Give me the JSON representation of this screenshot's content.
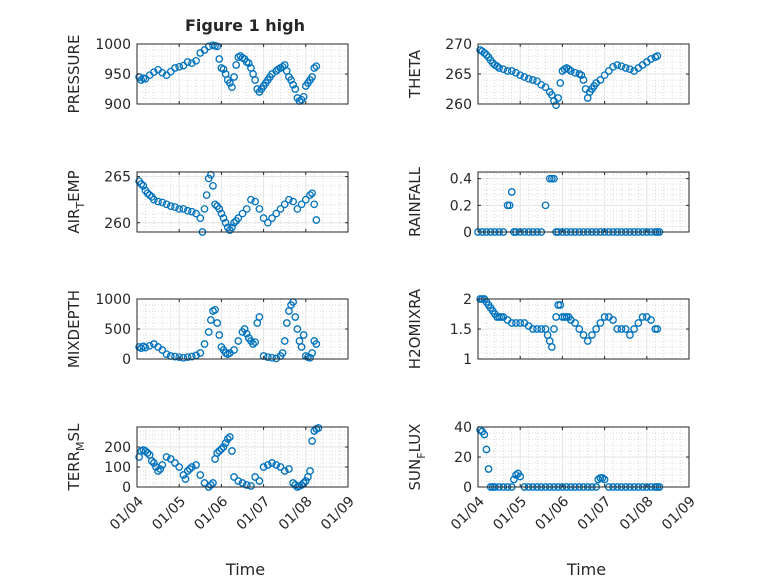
{
  "title": "Figure 1 high",
  "chart_data": [
    {
      "type": "scatter",
      "ylabel": "PRESSURE",
      "xlim": [
        "2023-01-04",
        "2023-01-09"
      ],
      "ylim": [
        900,
        1000
      ],
      "yticks": [
        900,
        950,
        1000
      ],
      "xticklabels": [],
      "series": [
        {
          "x": [
            4.05,
            4.1,
            4.15,
            4.2,
            4.3,
            4.4,
            4.5,
            4.6,
            4.7,
            4.8,
            4.9,
            5.0,
            5.1,
            5.2,
            5.3,
            5.4,
            5.5,
            5.6,
            5.7,
            5.8,
            5.85,
            5.9,
            5.95,
            6.0,
            6.05,
            6.1,
            6.15,
            6.2,
            6.25,
            6.3,
            6.35,
            6.4,
            6.45,
            6.5,
            6.55,
            6.6,
            6.65,
            6.7,
            6.75,
            6.8,
            6.85,
            6.9,
            6.95,
            7.0,
            7.05,
            7.1,
            7.15,
            7.2,
            7.3,
            7.35,
            7.4,
            7.45,
            7.5,
            7.55,
            7.6,
            7.65,
            7.7,
            7.75,
            7.8,
            7.85,
            7.9,
            7.95,
            8.0,
            8.05,
            8.1,
            8.15,
            8.2,
            8.25
          ],
          "y": [
            945,
            940,
            943,
            942,
            948,
            953,
            957,
            952,
            948,
            954,
            960,
            962,
            964,
            970,
            968,
            972,
            985,
            990,
            996,
            998,
            997,
            996,
            975,
            960,
            958,
            950,
            940,
            935,
            928,
            945,
            965,
            978,
            980,
            977,
            975,
            970,
            968,
            960,
            950,
            940,
            925,
            920,
            925,
            930,
            935,
            940,
            945,
            950,
            955,
            958,
            960,
            962,
            965,
            955,
            945,
            940,
            932,
            925,
            910,
            905,
            907,
            912,
            930,
            935,
            940,
            945,
            960,
            963
          ]
        }
      ]
    },
    {
      "type": "scatter",
      "ylabel": "THETA",
      "xlim": [
        "2023-01-04",
        "2023-01-09"
      ],
      "ylim": [
        260,
        270
      ],
      "yticks": [
        260,
        265,
        270
      ],
      "xticklabels": [],
      "series": [
        {
          "x": [
            4.05,
            4.1,
            4.15,
            4.2,
            4.25,
            4.3,
            4.35,
            4.4,
            4.45,
            4.5,
            4.6,
            4.7,
            4.8,
            4.9,
            5.0,
            5.1,
            5.2,
            5.3,
            5.4,
            5.5,
            5.6,
            5.7,
            5.75,
            5.8,
            5.85,
            5.9,
            5.95,
            6.0,
            6.05,
            6.1,
            6.15,
            6.2,
            6.3,
            6.4,
            6.45,
            6.5,
            6.55,
            6.6,
            6.65,
            6.7,
            6.75,
            6.8,
            6.9,
            7.0,
            7.1,
            7.2,
            7.3,
            7.4,
            7.5,
            7.6,
            7.7,
            7.8,
            7.9,
            8.0,
            8.1,
            8.2,
            8.25
          ],
          "y": [
            269,
            268.8,
            268.5,
            268.2,
            267.8,
            267.3,
            266.8,
            266.5,
            266.3,
            266,
            265.8,
            265.5,
            265.5,
            265.2,
            264.8,
            264.5,
            264.2,
            264.0,
            263.8,
            263.2,
            262.8,
            262,
            261.5,
            260.5,
            259.8,
            261,
            263.5,
            265.5,
            265.8,
            266,
            265.8,
            265.5,
            265.2,
            265.0,
            264.8,
            264,
            262.5,
            261,
            262,
            262.5,
            263,
            263.5,
            264,
            264.8,
            265.5,
            266.2,
            266.5,
            266.3,
            266,
            265.8,
            265.5,
            266,
            266.5,
            267,
            267.5,
            267.8,
            268
          ]
        }
      ]
    },
    {
      "type": "scatter",
      "ylabel": "AIR_TEMP",
      "xlim": [
        "2023-01-04",
        "2023-01-09"
      ],
      "ylim": [
        259,
        265.5
      ],
      "yticks": [
        260,
        265
      ],
      "xticklabels": [],
      "series": [
        {
          "x": [
            4.05,
            4.1,
            4.15,
            4.2,
            4.25,
            4.3,
            4.35,
            4.4,
            4.5,
            4.6,
            4.7,
            4.8,
            4.9,
            5.0,
            5.1,
            5.2,
            5.3,
            5.4,
            5.5,
            5.55,
            5.6,
            5.65,
            5.7,
            5.75,
            5.8,
            5.85,
            5.9,
            5.95,
            6.0,
            6.05,
            6.1,
            6.15,
            6.2,
            6.25,
            6.3,
            6.35,
            6.4,
            6.5,
            6.6,
            6.7,
            6.8,
            6.9,
            7.0,
            7.1,
            7.2,
            7.3,
            7.4,
            7.5,
            7.6,
            7.7,
            7.8,
            7.9,
            8.0,
            8.1,
            8.15,
            8.2,
            8.25
          ],
          "y": [
            264.5,
            264.2,
            264,
            263.5,
            263.2,
            263,
            262.8,
            262.5,
            262.3,
            262.2,
            262,
            261.8,
            261.7,
            261.5,
            261.5,
            261.3,
            261.2,
            261.0,
            260.5,
            259,
            261.5,
            263,
            264.8,
            265.2,
            264,
            262,
            261.8,
            261.5,
            261,
            260.5,
            260,
            259.5,
            259.2,
            259.5,
            260,
            260.2,
            260.5,
            261,
            261.5,
            262.5,
            262.3,
            261.5,
            260.5,
            260,
            260.5,
            261,
            261.5,
            262,
            262.5,
            262.3,
            261.5,
            262,
            262.5,
            263,
            263.2,
            262,
            260.3
          ]
        }
      ]
    },
    {
      "type": "scatter",
      "ylabel": "RAINFALL",
      "xlim": [
        "2023-01-04",
        "2023-01-09"
      ],
      "ylim": [
        0,
        0.45
      ],
      "yticks": [
        0,
        0.2,
        0.4
      ],
      "xticklabels": [],
      "series": [
        {
          "x": [
            4.0,
            4.1,
            4.2,
            4.3,
            4.4,
            4.5,
            4.6,
            4.7,
            4.75,
            4.8,
            4.85,
            4.9,
            5.0,
            5.1,
            5.2,
            5.3,
            5.4,
            5.5,
            5.6,
            5.7,
            5.75,
            5.8,
            5.85,
            5.9,
            6.0,
            6.1,
            6.2,
            6.3,
            6.4,
            6.5,
            6.6,
            6.7,
            6.8,
            6.9,
            7.0,
            7.1,
            7.2,
            7.3,
            7.4,
            7.5,
            7.6,
            7.7,
            7.8,
            7.9,
            8.0,
            8.1,
            8.2,
            8.25,
            8.3
          ],
          "y": [
            0,
            0,
            0,
            0,
            0,
            0,
            0,
            0.2,
            0.2,
            0.3,
            0,
            0,
            0,
            0,
            0,
            0,
            0,
            0,
            0.2,
            0.4,
            0.4,
            0.4,
            0,
            0,
            0,
            0,
            0,
            0,
            0,
            0,
            0,
            0,
            0,
            0,
            0,
            0,
            0,
            0,
            0,
            0,
            0,
            0,
            0,
            0,
            0,
            0,
            0,
            0,
            0
          ]
        }
      ]
    },
    {
      "type": "scatter",
      "ylabel": "MIXDEPTH",
      "xlim": [
        "2023-01-04",
        "2023-01-09"
      ],
      "ylim": [
        0,
        1000
      ],
      "yticks": [
        0,
        500,
        1000
      ],
      "xticklabels": [],
      "series": [
        {
          "x": [
            4.05,
            4.1,
            4.15,
            4.2,
            4.3,
            4.4,
            4.5,
            4.6,
            4.7,
            4.8,
            4.9,
            5.0,
            5.1,
            5.2,
            5.3,
            5.4,
            5.5,
            5.6,
            5.7,
            5.75,
            5.8,
            5.85,
            5.9,
            5.95,
            6.0,
            6.05,
            6.1,
            6.15,
            6.2,
            6.3,
            6.4,
            6.5,
            6.55,
            6.6,
            6.65,
            6.7,
            6.75,
            6.8,
            6.85,
            6.9,
            7.0,
            7.1,
            7.2,
            7.3,
            7.4,
            7.45,
            7.5,
            7.55,
            7.6,
            7.65,
            7.7,
            7.75,
            7.8,
            7.85,
            7.9,
            7.95,
            8.0,
            8.05,
            8.1,
            8.15,
            8.2,
            8.25
          ],
          "y": [
            200,
            180,
            210,
            190,
            220,
            250,
            200,
            150,
            80,
            50,
            40,
            30,
            20,
            30,
            40,
            60,
            100,
            250,
            450,
            650,
            800,
            820,
            600,
            400,
            200,
            150,
            100,
            80,
            100,
            150,
            300,
            450,
            500,
            420,
            350,
            300,
            250,
            280,
            600,
            700,
            50,
            30,
            20,
            10,
            50,
            100,
            300,
            600,
            800,
            900,
            950,
            700,
            500,
            300,
            200,
            400,
            50,
            30,
            20,
            100,
            300,
            250
          ]
        }
      ]
    },
    {
      "type": "scatter",
      "ylabel": "H2OMIXRA",
      "xlim": [
        "2023-01-04",
        "2023-01-09"
      ],
      "ylim": [
        1,
        2
      ],
      "yticks": [
        1,
        1.5,
        2
      ],
      "xticklabels": [],
      "series": [
        {
          "x": [
            4.05,
            4.1,
            4.15,
            4.2,
            4.25,
            4.3,
            4.35,
            4.4,
            4.45,
            4.5,
            4.55,
            4.6,
            4.7,
            4.8,
            4.9,
            5.0,
            5.1,
            5.2,
            5.3,
            5.4,
            5.5,
            5.6,
            5.65,
            5.7,
            5.75,
            5.8,
            5.85,
            5.9,
            5.95,
            6.0,
            6.05,
            6.1,
            6.15,
            6.2,
            6.3,
            6.4,
            6.5,
            6.6,
            6.7,
            6.8,
            6.9,
            7.0,
            7.1,
            7.2,
            7.3,
            7.4,
            7.5,
            7.6,
            7.7,
            7.8,
            7.9,
            8.0,
            8.1,
            8.2,
            8.25
          ],
          "y": [
            2,
            2,
            2,
            1.95,
            1.9,
            1.85,
            1.8,
            1.75,
            1.7,
            1.7,
            1.7,
            1.7,
            1.65,
            1.6,
            1.6,
            1.6,
            1.6,
            1.55,
            1.5,
            1.5,
            1.5,
            1.5,
            1.4,
            1.3,
            1.2,
            1.5,
            1.7,
            1.9,
            1.9,
            1.7,
            1.7,
            1.7,
            1.7,
            1.65,
            1.6,
            1.5,
            1.4,
            1.3,
            1.4,
            1.5,
            1.6,
            1.7,
            1.7,
            1.65,
            1.5,
            1.5,
            1.5,
            1.4,
            1.5,
            1.6,
            1.7,
            1.7,
            1.65,
            1.5,
            1.5
          ]
        }
      ]
    },
    {
      "type": "scatter",
      "ylabel": "TERR_MSL",
      "xlabel": "Time",
      "xlim": [
        "2023-01-04",
        "2023-01-09"
      ],
      "ylim": [
        0,
        300
      ],
      "yticks": [
        0,
        100,
        200
      ],
      "xticklabels": [
        "01/04",
        "01/05",
        "01/06",
        "01/07",
        "01/08",
        "01/09"
      ],
      "series": [
        {
          "x": [
            4.05,
            4.1,
            4.15,
            4.2,
            4.25,
            4.3,
            4.35,
            4.4,
            4.45,
            4.5,
            4.55,
            4.6,
            4.7,
            4.8,
            4.9,
            5.0,
            5.1,
            5.15,
            5.2,
            5.25,
            5.3,
            5.4,
            5.5,
            5.6,
            5.7,
            5.75,
            5.8,
            5.85,
            5.9,
            5.95,
            6.0,
            6.05,
            6.1,
            6.15,
            6.2,
            6.25,
            6.3,
            6.4,
            6.5,
            6.6,
            6.7,
            6.8,
            6.9,
            7.0,
            7.1,
            7.2,
            7.3,
            7.4,
            7.5,
            7.6,
            7.7,
            7.75,
            7.8,
            7.85,
            7.9,
            7.95,
            8.0,
            8.05,
            8.1,
            8.15,
            8.2,
            8.25,
            8.3
          ],
          "y": [
            150,
            180,
            185,
            180,
            170,
            160,
            130,
            120,
            100,
            80,
            90,
            110,
            150,
            140,
            120,
            100,
            60,
            40,
            80,
            90,
            100,
            110,
            60,
            20,
            0,
            10,
            20,
            140,
            170,
            180,
            190,
            200,
            220,
            240,
            250,
            180,
            50,
            30,
            20,
            10,
            5,
            50,
            30,
            100,
            110,
            120,
            110,
            100,
            80,
            90,
            20,
            10,
            0,
            5,
            10,
            20,
            30,
            50,
            80,
            230,
            280,
            290,
            295
          ]
        }
      ]
    },
    {
      "type": "scatter",
      "ylabel": "SUN_FLUX",
      "xlabel": "Time",
      "xlim": [
        "2023-01-04",
        "2023-01-09"
      ],
      "ylim": [
        0,
        40
      ],
      "yticks": [
        0,
        20,
        40
      ],
      "xticklabels": [
        "01/04",
        "01/05",
        "01/06",
        "01/07",
        "01/08",
        "01/09"
      ],
      "series": [
        {
          "x": [
            4.05,
            4.1,
            4.15,
            4.2,
            4.25,
            4.3,
            4.35,
            4.4,
            4.5,
            4.6,
            4.7,
            4.8,
            4.85,
            4.9,
            4.95,
            5.0,
            5.1,
            5.2,
            5.3,
            5.4,
            5.5,
            5.6,
            5.7,
            5.8,
            5.9,
            6.0,
            6.1,
            6.2,
            6.3,
            6.4,
            6.5,
            6.6,
            6.7,
            6.8,
            6.85,
            6.9,
            6.95,
            7.0,
            7.1,
            7.2,
            7.3,
            7.4,
            7.5,
            7.6,
            7.7,
            7.8,
            7.9,
            8.0,
            8.1,
            8.2,
            8.25,
            8.3
          ],
          "y": [
            38,
            37,
            35,
            25,
            12,
            0,
            0,
            0,
            0,
            0,
            0,
            0,
            5,
            8,
            9,
            7,
            0,
            0,
            0,
            0,
            0,
            0,
            0,
            0,
            0,
            0,
            0,
            0,
            0,
            0,
            0,
            0,
            0,
            0,
            5,
            6,
            6,
            5,
            0,
            0,
            0,
            0,
            0,
            0,
            0,
            0,
            0,
            0,
            0,
            0,
            0,
            0
          ]
        }
      ]
    }
  ]
}
